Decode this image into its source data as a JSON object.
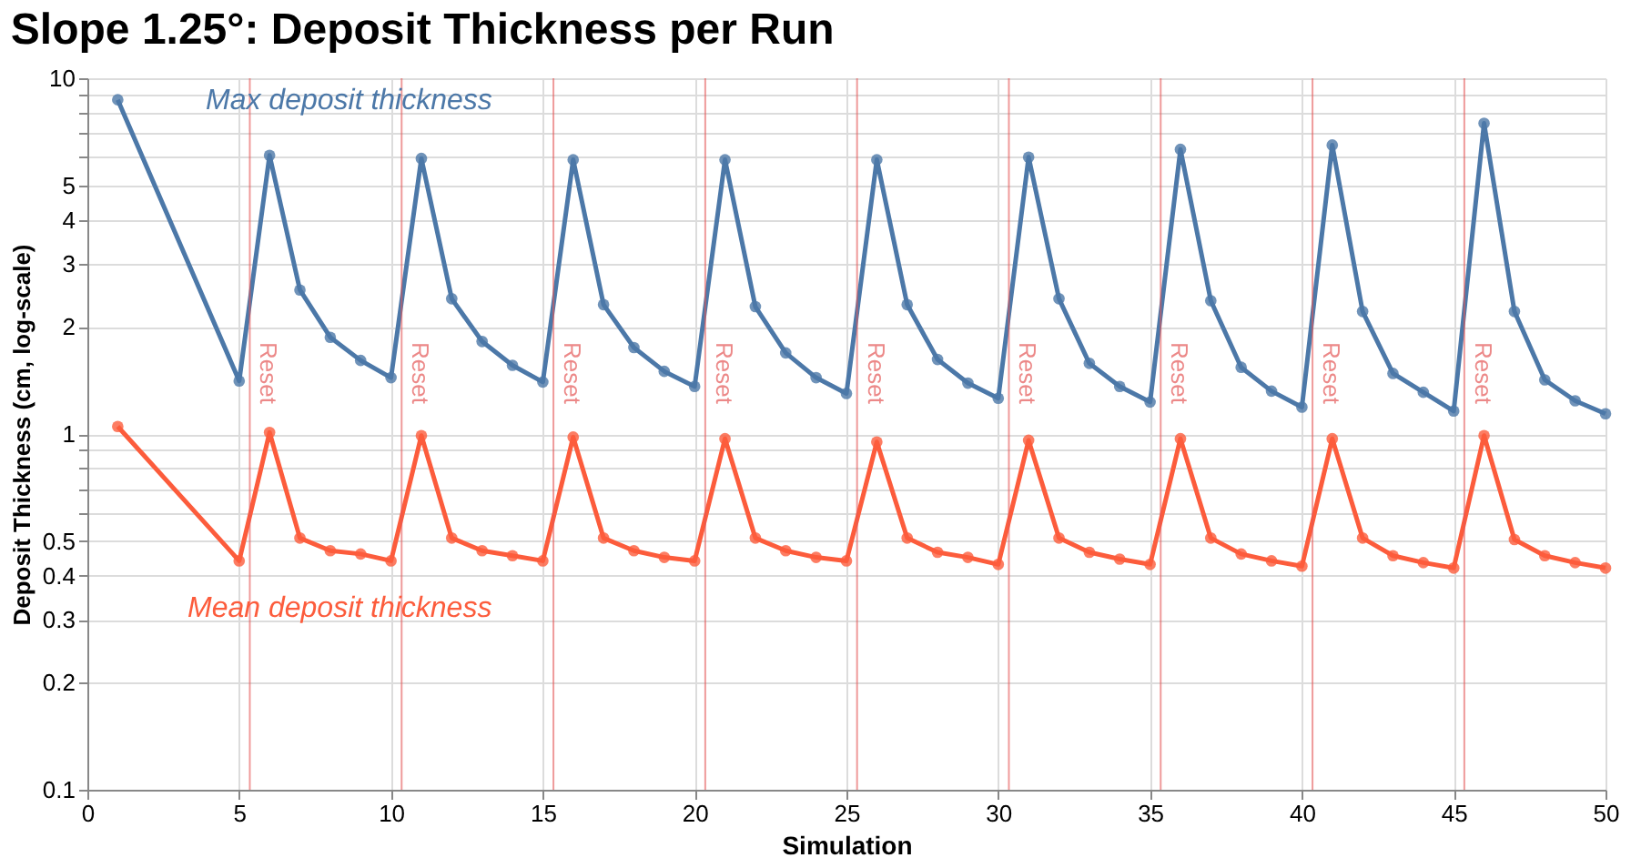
{
  "chart_data": {
    "type": "line",
    "title": "Slope 1.25°: Deposit Thickness per Run",
    "xlabel": "Simulation",
    "ylabel": "Deposit Thickness (cm, log-scale)",
    "x": [
      1,
      5,
      6,
      7,
      8,
      9,
      10,
      11,
      12,
      13,
      14,
      15,
      16,
      17,
      18,
      19,
      20,
      21,
      22,
      23,
      24,
      25,
      26,
      27,
      28,
      29,
      30,
      31,
      32,
      33,
      34,
      35,
      36,
      37,
      38,
      39,
      40,
      41,
      42,
      43,
      44,
      45,
      46,
      47,
      48,
      49,
      50
    ],
    "series": [
      {
        "color": "#4c78a8",
        "values": [
          8.7,
          1.41,
          6.07,
          2.54,
          1.87,
          1.61,
          1.44,
          5.95,
          2.4,
          1.82,
          1.56,
          1.4,
          5.9,
          2.31,
          1.75,
          1.5,
          1.36,
          5.9,
          2.28,
          1.69,
          1.44,
          1.3,
          5.9,
          2.31,
          1.62,
          1.39,
          1.26,
          6.0,
          2.4,
          1.58,
          1.36,
          1.23,
          6.31,
          2.37,
          1.54,
          1.32,
          1.19,
          6.49,
          2.21,
          1.48,
          1.31,
          1.16,
          7.47,
          2.21,
          1.42,
          1.24,
          1.14
        ]
      },
      {
        "color": "#fc5c3c",
        "values": [
          1.05,
          0.44,
          1.01,
          0.51,
          0.47,
          0.46,
          0.44,
          0.99,
          0.51,
          0.47,
          0.455,
          0.44,
          0.98,
          0.51,
          0.47,
          0.45,
          0.44,
          0.97,
          0.51,
          0.47,
          0.45,
          0.44,
          0.95,
          0.51,
          0.465,
          0.45,
          0.43,
          0.96,
          0.51,
          0.465,
          0.445,
          0.43,
          0.97,
          0.51,
          0.46,
          0.44,
          0.425,
          0.97,
          0.51,
          0.455,
          0.435,
          0.42,
          0.99,
          0.505,
          0.455,
          0.435,
          0.42
        ]
      }
    ],
    "annotations": [
      "Max deposit thickness",
      "Mean deposit thickness"
    ],
    "ref_lines": [
      {
        "axis": "x",
        "value": 5.35,
        "label": "Reset",
        "color": "#e45756"
      },
      {
        "axis": "x",
        "value": 10.35,
        "label": "Reset",
        "color": "#e45756"
      },
      {
        "axis": "x",
        "value": 15.35,
        "label": "Reset",
        "color": "#e45756"
      },
      {
        "axis": "x",
        "value": 20.35,
        "label": "Reset",
        "color": "#e45756"
      },
      {
        "axis": "x",
        "value": 25.35,
        "label": "Reset",
        "color": "#e45756"
      },
      {
        "axis": "x",
        "value": 30.35,
        "label": "Reset",
        "color": "#e45756"
      },
      {
        "axis": "x",
        "value": 35.35,
        "label": "Reset",
        "color": "#e45756"
      },
      {
        "axis": "x",
        "value": 40.35,
        "label": "Reset",
        "color": "#e45756"
      },
      {
        "axis": "x",
        "value": 45.35,
        "label": "Reset",
        "color": "#e45756"
      }
    ],
    "xlim": [
      0,
      50
    ],
    "xticks": [
      0,
      5,
      10,
      15,
      20,
      25,
      30,
      35,
      40,
      45,
      50
    ],
    "ylim": [
      0.1,
      10
    ],
    "log": "y",
    "yticks": [
      0.1,
      0.2,
      0.3,
      0.4,
      0.5,
      {
        "value": 0.6,
        "label": null
      },
      {
        "value": 0.7,
        "label": null
      },
      {
        "value": 0.8,
        "label": null
      },
      {
        "value": 0.9,
        "label": null
      },
      1,
      2,
      3,
      4,
      5,
      {
        "value": 6,
        "label": null
      },
      {
        "value": 7,
        "label": null
      },
      {
        "value": 8,
        "label": null
      },
      {
        "value": 9,
        "label": null
      },
      10
    ],
    "grid": true,
    "marker": "circle",
    "line_style": "solid"
  }
}
